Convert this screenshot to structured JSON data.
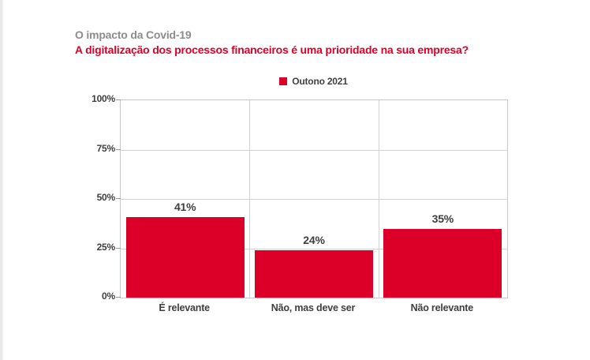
{
  "header": {
    "kicker": "O impacto da Covid-19",
    "title": "A digitalização dos processos financeiros é uma prioridade na sua empresa?"
  },
  "legend": {
    "label": "Outono 2021",
    "swatch_color": "#dc0028",
    "position": "top-center"
  },
  "colors": {
    "bar": "#dc0028",
    "title_red": "#dc0028",
    "kicker_gray": "#8c8c8c",
    "label_dark": "#3f3f3f",
    "gridline": "#d2d2d2"
  },
  "chart_data": {
    "type": "bar",
    "title": "A digitalização dos processos financeiros é uma prioridade na sua empresa?",
    "subtitle": "O impacto da Covid-19",
    "categories": [
      "É relevante",
      "Não, mas deve ser",
      "Não relevante"
    ],
    "series": [
      {
        "name": "Outono 2021",
        "values": [
          41,
          24,
          35
        ]
      }
    ],
    "value_labels": [
      "41%",
      "24%",
      "35%"
    ],
    "xlabel": "",
    "ylabel": "",
    "ylim": [
      0,
      100
    ],
    "yticks": [
      0,
      25,
      50,
      75,
      100
    ],
    "ytick_labels": [
      "0%",
      "25%",
      "50%",
      "75%",
      "100%"
    ],
    "grid": true,
    "legend_position": "top-center"
  }
}
